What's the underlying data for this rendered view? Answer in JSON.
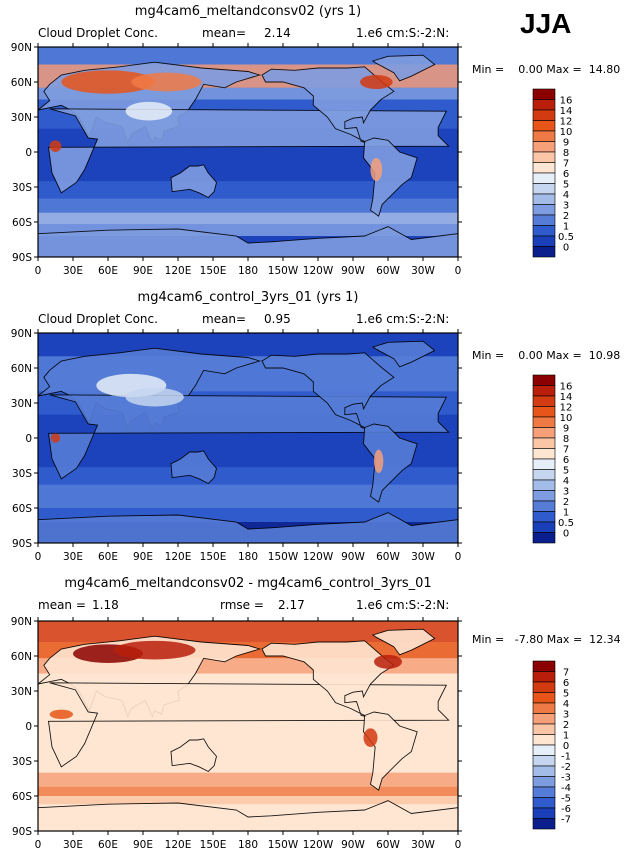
{
  "season": "JJA",
  "panels": [
    {
      "title": "mg4cam6_meltandconsv02 (yrs 1)",
      "variable": "Cloud Droplet Conc.",
      "mean_label": "mean=",
      "mean_value": "2.14",
      "units": "1.e6 cm:S:-2:N:",
      "min_label": "Min =",
      "min_value": "0.00",
      "max_label": "Max =",
      "max_value": "14.80",
      "colorbar_labels": [
        "16",
        "14",
        "12",
        "10",
        "9",
        "8",
        "7",
        "6",
        "5",
        "4",
        "3",
        "2",
        "1",
        "0.5",
        "0"
      ],
      "colorbar_colors": [
        "#8B0000",
        "#B81E0A",
        "#D23A12",
        "#E8551A",
        "#F07A45",
        "#F6A07A",
        "#FAC6A6",
        "#FFE6D2",
        "#E6EEF8",
        "#C6D6F0",
        "#A4BCE8",
        "#7E9CE0",
        "#557CD6",
        "#2F5BCC",
        "#1A3FB8",
        "#0A1F8C"
      ]
    },
    {
      "title": "mg4cam6_control_3yrs_01 (yrs 1)",
      "variable": "Cloud Droplet Conc.",
      "mean_label": "mean=",
      "mean_value": "0.95",
      "units": "1.e6 cm:S:-2:N:",
      "min_label": "Min =",
      "min_value": "0.00",
      "max_label": "Max =",
      "max_value": "10.98",
      "colorbar_labels": [
        "16",
        "14",
        "12",
        "10",
        "9",
        "8",
        "7",
        "6",
        "5",
        "4",
        "3",
        "2",
        "1",
        "0.5",
        "0"
      ],
      "colorbar_colors": [
        "#8B0000",
        "#B81E0A",
        "#D23A12",
        "#E8551A",
        "#F07A45",
        "#F6A07A",
        "#FAC6A6",
        "#FFE6D2",
        "#E6EEF8",
        "#C6D6F0",
        "#A4BCE8",
        "#7E9CE0",
        "#557CD6",
        "#2F5BCC",
        "#1A3FB8",
        "#0A1F8C"
      ]
    },
    {
      "title": "mg4cam6_meltandconsv02 - mg4cam6_control_3yrs_01",
      "mean_label": "mean =",
      "mean_value": "1.18",
      "rmse_label": "rmse =",
      "rmse_value": "2.17",
      "units": "1.e6 cm:S:-2:N:",
      "min_label": "Min =",
      "min_value": "-7.80",
      "max_label": "Max =",
      "max_value": "12.34",
      "colorbar_labels": [
        "7",
        "6",
        "5",
        "4",
        "3",
        "2",
        "1",
        "0",
        "-1",
        "-2",
        "-3",
        "-4",
        "-5",
        "-6",
        "-7"
      ],
      "colorbar_colors": [
        "#8B0000",
        "#B81E0A",
        "#D23A12",
        "#E8551A",
        "#F07A45",
        "#F6A07A",
        "#FAC6A6",
        "#FFE6D2",
        "#E6EEF8",
        "#C6D6F0",
        "#A4BCE8",
        "#7E9CE0",
        "#557CD6",
        "#2F5BCC",
        "#1A3FB8",
        "#0A1F8C"
      ]
    }
  ],
  "chart_data": [
    {
      "type": "heatmap",
      "title": "mg4cam6_meltandconsv02 (yrs 1)",
      "variable": "Cloud Droplet Conc.",
      "mean": 2.14,
      "min": 0.0,
      "max": 14.8,
      "xlim": [
        0,
        360
      ],
      "ylim": [
        -90,
        90
      ],
      "x_tick_labels": [
        "0",
        "30E",
        "60E",
        "90E",
        "120E",
        "150E",
        "180",
        "150W",
        "120W",
        "90W",
        "60W",
        "30W",
        "0"
      ],
      "y_tick_labels": [
        "90N",
        "60N",
        "30N",
        "0",
        "30S",
        "60S",
        "90S"
      ],
      "levels": [
        0,
        0.5,
        1,
        2,
        3,
        4,
        5,
        6,
        7,
        8,
        9,
        10,
        12,
        14,
        16
      ]
    },
    {
      "type": "heatmap",
      "title": "mg4cam6_control_3yrs_01 (yrs 1)",
      "variable": "Cloud Droplet Conc.",
      "mean": 0.95,
      "min": 0.0,
      "max": 10.98,
      "xlim": [
        0,
        360
      ],
      "ylim": [
        -90,
        90
      ],
      "x_tick_labels": [
        "0",
        "30E",
        "60E",
        "90E",
        "120E",
        "150E",
        "180",
        "150W",
        "120W",
        "90W",
        "60W",
        "30W",
        "0"
      ],
      "y_tick_labels": [
        "90N",
        "60N",
        "30N",
        "0",
        "30S",
        "60S",
        "90S"
      ],
      "levels": [
        0,
        0.5,
        1,
        2,
        3,
        4,
        5,
        6,
        7,
        8,
        9,
        10,
        12,
        14,
        16
      ]
    },
    {
      "type": "heatmap",
      "title": "mg4cam6_meltandconsv02 - mg4cam6_control_3yrs_01",
      "mean": 1.18,
      "rmse": 2.17,
      "min": -7.8,
      "max": 12.34,
      "xlim": [
        0,
        360
      ],
      "ylim": [
        -90,
        90
      ],
      "x_tick_labels": [
        "0",
        "30E",
        "60E",
        "90E",
        "120E",
        "150E",
        "180",
        "150W",
        "120W",
        "90W",
        "60W",
        "30W",
        "0"
      ],
      "y_tick_labels": [
        "90N",
        "60N",
        "30N",
        "0",
        "30S",
        "60S",
        "90S"
      ],
      "levels": [
        -7,
        -6,
        -5,
        -4,
        -3,
        -2,
        -1,
        0,
        1,
        2,
        3,
        4,
        5,
        6,
        7
      ]
    }
  ]
}
